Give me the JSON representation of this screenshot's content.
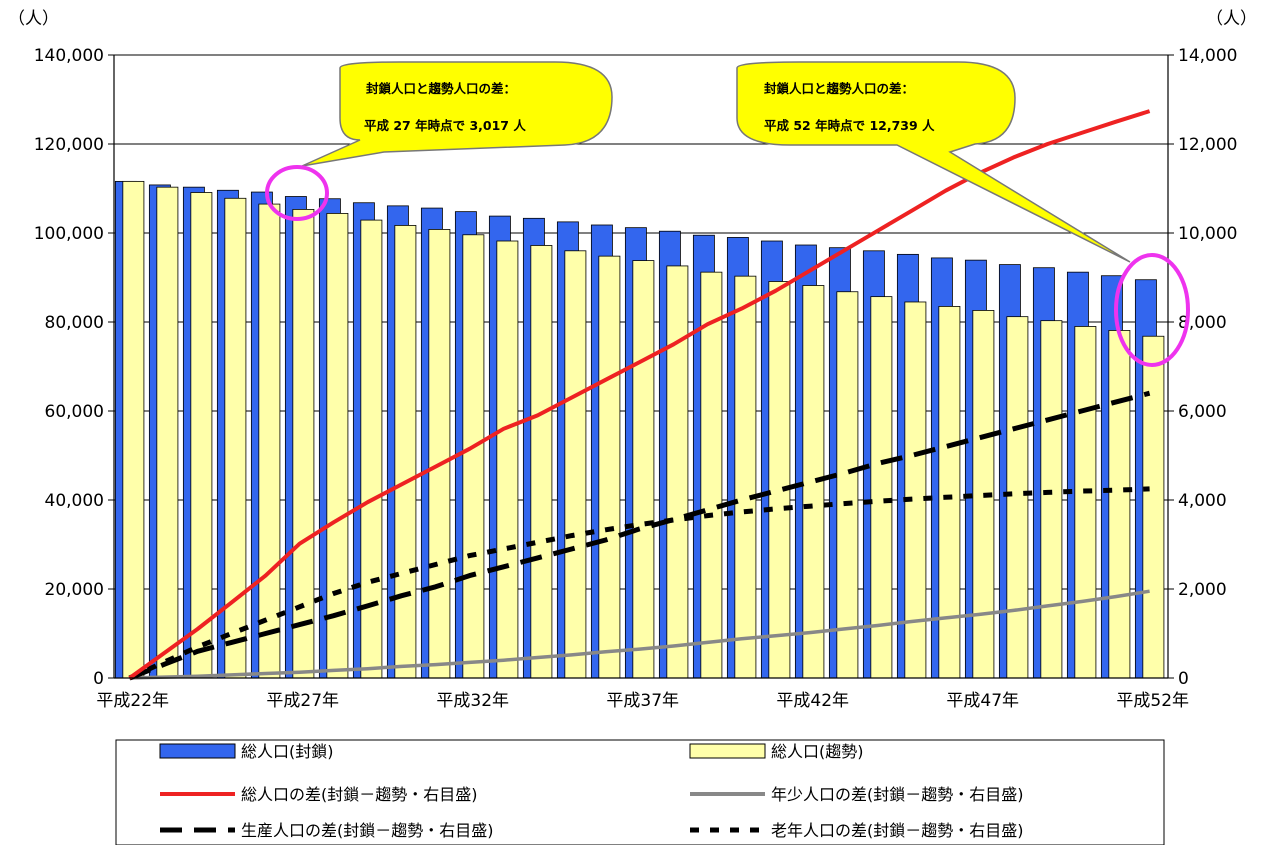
{
  "chart_data": {
    "type": "bar",
    "left_unit": "（人）",
    "right_unit": "（人）",
    "x_tick_labels": [
      "平成22年",
      "平成27年",
      "平成32年",
      "平成37年",
      "平成42年",
      "平成47年",
      "平成52年"
    ],
    "y_left": {
      "min": 0,
      "max": 140000,
      "ticks": [
        "0",
        "20,000",
        "40,000",
        "60,000",
        "80,000",
        "100,000",
        "120,000",
        "140,000"
      ]
    },
    "y_right": {
      "min": 0,
      "max": 14000,
      "ticks": [
        "0",
        "2,000",
        "4,000",
        "6,000",
        "8,000",
        "10,000",
        "12,000",
        "14,000"
      ]
    },
    "grid": true,
    "years": [
      22,
      23,
      24,
      25,
      26,
      27,
      28,
      29,
      30,
      31,
      32,
      33,
      34,
      35,
      36,
      37,
      38,
      39,
      40,
      41,
      42,
      43,
      44,
      45,
      46,
      47,
      48,
      49,
      50,
      51,
      52
    ],
    "bar_series": [
      {
        "name": "総人口(封鎖)",
        "color": "#3366ee",
        "values": [
          111600,
          110800,
          110300,
          109600,
          109200,
          108200,
          107700,
          106800,
          106100,
          105600,
          104800,
          103800,
          103300,
          102500,
          101800,
          101200,
          100400,
          99500,
          99000,
          98200,
          97300,
          96700,
          96000,
          95200,
          94400,
          93900,
          92900,
          92200,
          91200,
          90400,
          89500
        ]
      },
      {
        "name": "総人口(趨勢)",
        "color": "#ffffaa",
        "values": [
          111600,
          110300,
          109100,
          107800,
          106500,
          105300,
          104400,
          102900,
          101700,
          100800,
          99600,
          98200,
          97200,
          96000,
          94800,
          93800,
          92600,
          91200,
          90300,
          89100,
          88200,
          86800,
          85700,
          84500,
          83500,
          82600,
          81200,
          80300,
          79000,
          78100,
          76800
        ]
      }
    ],
    "line_series": [
      {
        "name": "総人口の差(封鎖－趨勢・右目盛)",
        "color": "#ee2222",
        "style": "solid",
        "values": [
          0,
          550,
          1100,
          1700,
          2300,
          3017,
          3500,
          3950,
          4350,
          4750,
          5150,
          5600,
          5900,
          6300,
          6700,
          7100,
          7500,
          7950,
          8300,
          8700,
          9150,
          9600,
          10050,
          10500,
          10950,
          11350,
          11700,
          12000,
          12250,
          12500,
          12739
        ]
      },
      {
        "name": "年少人口の差(封鎖－趨勢・右目盛)",
        "color": "#888888",
        "style": "solid",
        "values": [
          0,
          20,
          40,
          70,
          100,
          130,
          170,
          210,
          260,
          300,
          350,
          400,
          460,
          520,
          590,
          650,
          720,
          800,
          880,
          950,
          1020,
          1100,
          1180,
          1270,
          1350,
          1430,
          1520,
          1620,
          1720,
          1830,
          1950
        ]
      },
      {
        "name": "生産人口の差(封鎖－趨勢・右目盛)",
        "color": "#000000",
        "style": "dash",
        "values": [
          0,
          300,
          600,
          800,
          1000,
          1200,
          1400,
          1620,
          1850,
          2050,
          2300,
          2500,
          2700,
          2900,
          3100,
          3350,
          3560,
          3780,
          4000,
          4200,
          4400,
          4600,
          4820,
          5000,
          5200,
          5400,
          5600,
          5800,
          6000,
          6200,
          6400
        ]
      },
      {
        "name": "老年人口の差(封鎖－趨勢・右目盛)",
        "color": "#000000",
        "style": "dot",
        "values": [
          0,
          350,
          700,
          1000,
          1300,
          1600,
          1900,
          2150,
          2350,
          2550,
          2750,
          2900,
          3050,
          3200,
          3330,
          3450,
          3550,
          3650,
          3730,
          3800,
          3860,
          3920,
          3970,
          4020,
          4060,
          4100,
          4140,
          4170,
          4200,
          4220,
          4250
        ]
      }
    ],
    "annotations": [
      {
        "line1": "封鎖人口と趨勢人口の差：",
        "line2": "平成 27 年時点で 3,017 人"
      },
      {
        "line1": "封鎖人口と趨勢人口の差：",
        "line2": "平成 52 年時点で 12,739 人"
      }
    ]
  }
}
